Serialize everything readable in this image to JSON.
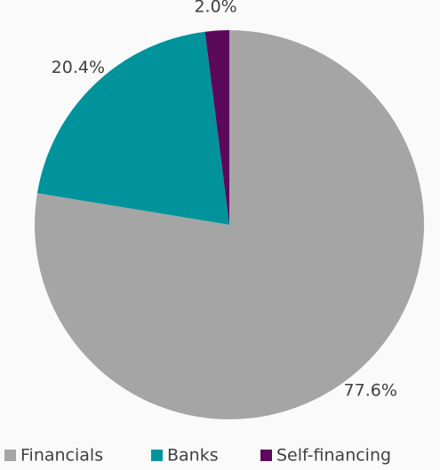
{
  "chart_data": {
    "type": "pie",
    "categories": [
      "Financials",
      "Banks",
      "Self-financing"
    ],
    "values": [
      77.6,
      20.4,
      2.0
    ],
    "value_labels": [
      "77.6%",
      "20.4%",
      "2.0%"
    ],
    "colors": [
      "#a5a5a5",
      "#00939c",
      "#5b0a5b"
    ],
    "legend": "bottom"
  }
}
